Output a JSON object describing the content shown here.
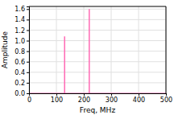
{
  "chart_data": {
    "type": "stem",
    "x": [
      130,
      220
    ],
    "values": [
      1.08,
      1.6
    ],
    "color": "#FF69B4",
    "xlabel": "Freq, MHz",
    "ylabel": "Amplitude",
    "xlim": [
      0,
      500
    ],
    "ylim": [
      0,
      1.65
    ],
    "xticks": [
      0,
      100,
      200,
      300,
      400,
      500
    ],
    "yticks": [
      {
        "value": 0,
        "label": "0.0"
      },
      0.2,
      0.4,
      0.6,
      0.8,
      {
        "value": 1,
        "label": "1.0"
      },
      1.2,
      1.4,
      1.6
    ],
    "grid": true
  }
}
